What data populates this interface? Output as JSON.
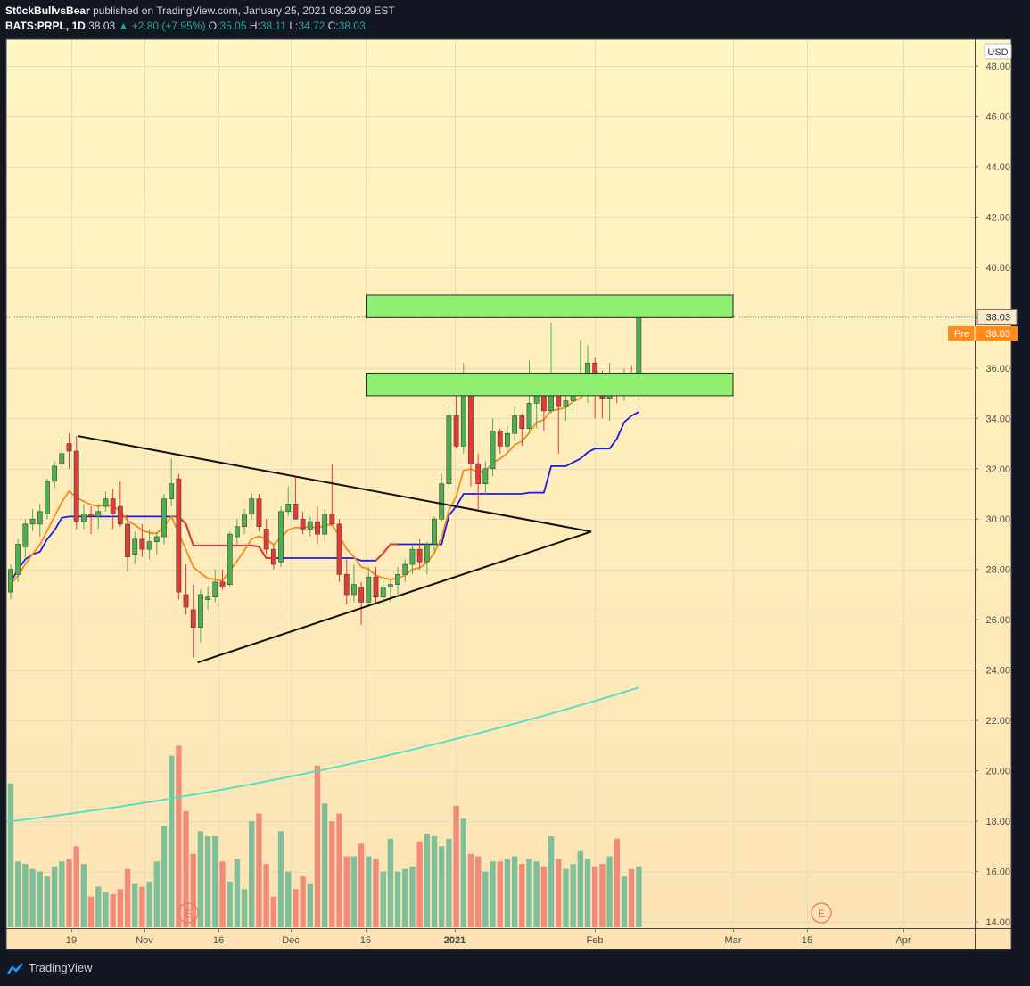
{
  "header": {
    "author": "St0ckBullvsBear",
    "published_text": "published on TradingView.com, January 25, 2021 08:29:09 EST",
    "symbol": "BATS:PRPL, 1D",
    "last": "38.03",
    "change": "▲ +2.80 (+7.95%)",
    "o_label": "O:",
    "o": "35.05",
    "h_label": "H:",
    "h": "38.11",
    "l_label": "L:",
    "l": "34.72",
    "c_label": "C:",
    "c": "38.03"
  },
  "footer": {
    "brand": "TradingView"
  },
  "colors": {
    "bg_top": "#fff6c2",
    "bg_bottom": "#fde3b4",
    "up": "#4caf50",
    "down": "#e53935",
    "vol_up": "#7fbf9a",
    "vol_down": "#f28b7a",
    "ema": "#f28c1c",
    "bline": "#1a1ae6",
    "ma_long": "#47e0c9",
    "zone": "#90ee70",
    "pre_badge": "#ff8c1a"
  },
  "chart_data": {
    "type": "candlestick",
    "currency": "USD",
    "ylim": [
      13.8,
      49.2
    ],
    "y_ticks": [
      "48.00",
      "46.00",
      "44.00",
      "42.00",
      "40.00",
      "38.00",
      "36.00",
      "34.00",
      "32.00",
      "30.00",
      "28.00",
      "26.00",
      "24.00",
      "22.00",
      "20.00",
      "18.00",
      "16.00",
      "14.00"
    ],
    "x_ticks": [
      "19",
      "Nov",
      "16",
      "Dec",
      "15",
      "2021",
      "Feb",
      "Mar",
      "15",
      "Apr"
    ],
    "last_price_label": "38.03",
    "pre_label": "Pre",
    "pre_price": "38.03",
    "earnings_marker": "E",
    "candles": [
      [
        27.1,
        28.2,
        26.8,
        28.0
      ],
      [
        27.8,
        29.2,
        27.5,
        29.0
      ],
      [
        28.9,
        30.0,
        28.4,
        29.8
      ],
      [
        29.8,
        30.4,
        29.5,
        30.0
      ],
      [
        29.8,
        30.6,
        29.3,
        30.3
      ],
      [
        30.2,
        31.6,
        30.0,
        31.5
      ],
      [
        31.5,
        32.3,
        31.2,
        32.1
      ],
      [
        32.2,
        33.3,
        32.0,
        32.6
      ],
      [
        33.0,
        33.4,
        32.0,
        32.7
      ],
      [
        32.7,
        33.3,
        29.6,
        29.9
      ],
      [
        29.9,
        30.6,
        29.6,
        30.2
      ],
      [
        30.2,
        30.5,
        29.4,
        30.1
      ],
      [
        30.1,
        30.6,
        29.6,
        30.3
      ],
      [
        30.5,
        31.1,
        30.3,
        30.8
      ],
      [
        30.8,
        31.2,
        29.6,
        30.2
      ],
      [
        30.5,
        31.5,
        29.7,
        29.8
      ],
      [
        29.8,
        30.2,
        27.9,
        28.5
      ],
      [
        28.6,
        29.5,
        28.2,
        29.2
      ],
      [
        29.2,
        29.8,
        28.5,
        28.8
      ],
      [
        28.8,
        29.6,
        28.4,
        29.1
      ],
      [
        29.1,
        29.5,
        28.6,
        29.3
      ],
      [
        29.3,
        31.0,
        29.0,
        30.8
      ],
      [
        30.8,
        32.4,
        30.5,
        31.4
      ],
      [
        31.6,
        31.8,
        26.8,
        27.1
      ],
      [
        27.0,
        28.2,
        26.2,
        26.5
      ],
      [
        26.4,
        27.4,
        24.5,
        25.7
      ],
      [
        25.7,
        27.2,
        25.1,
        27.0
      ],
      [
        26.8,
        27.3,
        26.4,
        26.9
      ],
      [
        26.9,
        28.0,
        26.7,
        27.5
      ],
      [
        27.5,
        28.0,
        27.2,
        27.3
      ],
      [
        27.4,
        29.5,
        27.3,
        29.4
      ],
      [
        29.3,
        30.0,
        29.0,
        29.7
      ],
      [
        29.7,
        30.4,
        29.4,
        30.2
      ],
      [
        30.2,
        31.0,
        30.0,
        30.8
      ],
      [
        30.8,
        31.0,
        29.5,
        29.7
      ],
      [
        29.6,
        30.0,
        28.6,
        28.8
      ],
      [
        28.8,
        29.0,
        28.0,
        28.2
      ],
      [
        28.3,
        30.5,
        28.1,
        30.3
      ],
      [
        30.3,
        31.3,
        30.1,
        30.6
      ],
      [
        30.6,
        31.7,
        30.1,
        30.0
      ],
      [
        30.0,
        30.3,
        29.4,
        29.6
      ],
      [
        29.6,
        30.1,
        29.3,
        29.9
      ],
      [
        29.9,
        30.5,
        29.0,
        29.4
      ],
      [
        29.4,
        30.4,
        29.1,
        30.2
      ],
      [
        30.2,
        32.2,
        29.8,
        29.8
      ],
      [
        29.8,
        30.0,
        27.5,
        27.8
      ],
      [
        27.8,
        28.4,
        26.6,
        27.0
      ],
      [
        27.0,
        28.2,
        26.7,
        27.4
      ],
      [
        27.3,
        27.5,
        25.8,
        26.7
      ],
      [
        26.7,
        28.1,
        26.5,
        27.7
      ],
      [
        27.7,
        28.1,
        26.6,
        26.9
      ],
      [
        26.9,
        27.6,
        26.4,
        27.3
      ],
      [
        27.3,
        27.6,
        26.7,
        27.4
      ],
      [
        27.4,
        28.1,
        27.0,
        27.8
      ],
      [
        27.8,
        28.4,
        27.5,
        28.2
      ],
      [
        28.2,
        29.0,
        27.8,
        28.8
      ],
      [
        28.8,
        29.2,
        28.0,
        28.3
      ],
      [
        28.3,
        29.1,
        27.8,
        29.0
      ],
      [
        29.0,
        30.1,
        28.6,
        30.0
      ],
      [
        30.0,
        31.8,
        29.9,
        31.4
      ],
      [
        31.4,
        34.5,
        31.2,
        34.1
      ],
      [
        34.1,
        35.2,
        32.8,
        32.9
      ],
      [
        32.9,
        36.2,
        32.6,
        35.5
      ],
      [
        35.4,
        35.6,
        31.3,
        32.2
      ],
      [
        32.2,
        32.6,
        30.4,
        31.4
      ],
      [
        31.4,
        32.3,
        31.0,
        32.0
      ],
      [
        32.0,
        34.0,
        31.7,
        33.5
      ],
      [
        33.5,
        33.6,
        32.6,
        32.9
      ],
      [
        32.9,
        33.7,
        32.6,
        33.4
      ],
      [
        33.4,
        34.5,
        33.1,
        34.1
      ],
      [
        34.1,
        34.2,
        32.9,
        33.6
      ],
      [
        33.6,
        36.3,
        33.4,
        34.6
      ],
      [
        34.6,
        35.7,
        33.6,
        35.3
      ],
      [
        35.3,
        35.6,
        33.5,
        34.3
      ],
      [
        34.3,
        37.8,
        34.2,
        35.6
      ],
      [
        35.5,
        35.7,
        32.6,
        34.5
      ],
      [
        34.5,
        34.9,
        33.9,
        34.7
      ],
      [
        34.7,
        35.6,
        34.3,
        35.5
      ],
      [
        35.1,
        37.1,
        34.9,
        35.3
      ],
      [
        35.4,
        36.9,
        34.6,
        36.2
      ],
      [
        36.2,
        36.4,
        34.0,
        35.5
      ],
      [
        35.5,
        35.9,
        34.0,
        34.8
      ],
      [
        34.8,
        36.2,
        33.9,
        35.1
      ],
      [
        35.1,
        35.4,
        34.6,
        35.0
      ],
      [
        35.0,
        36.0,
        34.7,
        35.6
      ],
      [
        35.6,
        36.1,
        35.1,
        35.3
      ],
      [
        35.05,
        38.11,
        34.72,
        38.03
      ]
    ],
    "volume": [
      19.5,
      16.4,
      16.3,
      16.1,
      16.0,
      15.8,
      16.2,
      16.4,
      16.5,
      17.0,
      16.3,
      15.0,
      15.4,
      15.2,
      15.1,
      15.3,
      16.1,
      15.5,
      15.4,
      15.6,
      16.4,
      17.8,
      20.6,
      21.0,
      18.4,
      16.7,
      17.6,
      17.4,
      17.4,
      16.4,
      15.6,
      16.5,
      15.3,
      18.0,
      18.3,
      16.3,
      15.0,
      17.6,
      16.0,
      15.3,
      15.8,
      15.5,
      20.2,
      18.7,
      18.0,
      18.3,
      16.6,
      16.6,
      17.1,
      16.6,
      16.5,
      16.0,
      17.3,
      16.0,
      16.1,
      16.2,
      17.2,
      17.5,
      17.4,
      17.0,
      17.3,
      18.6,
      18.1,
      16.7,
      16.6,
      16.0,
      16.4,
      16.4,
      16.5,
      16.6,
      16.3,
      16.5,
      16.4,
      16.2,
      17.4,
      16.5,
      16.1,
      16.3,
      16.8,
      16.5,
      16.2,
      16.3,
      16.6,
      17.3,
      15.8,
      16.1,
      16.2
    ],
    "ema_series_name": "",
    "zones": [
      {
        "from": 38.0,
        "to": 38.9,
        "start_bar": 50,
        "end_bar": 100
      },
      {
        "from": 34.9,
        "to": 35.8,
        "start_bar": 50,
        "end_bar": 100
      }
    ],
    "trendlines": [
      {
        "bar1": 9.2,
        "y1": 33.3,
        "bar2": 79.5,
        "y2": 29.5
      },
      {
        "bar1": 25.6,
        "y1": 24.3,
        "bar2": 79.5,
        "y2": 29.5
      }
    ]
  }
}
